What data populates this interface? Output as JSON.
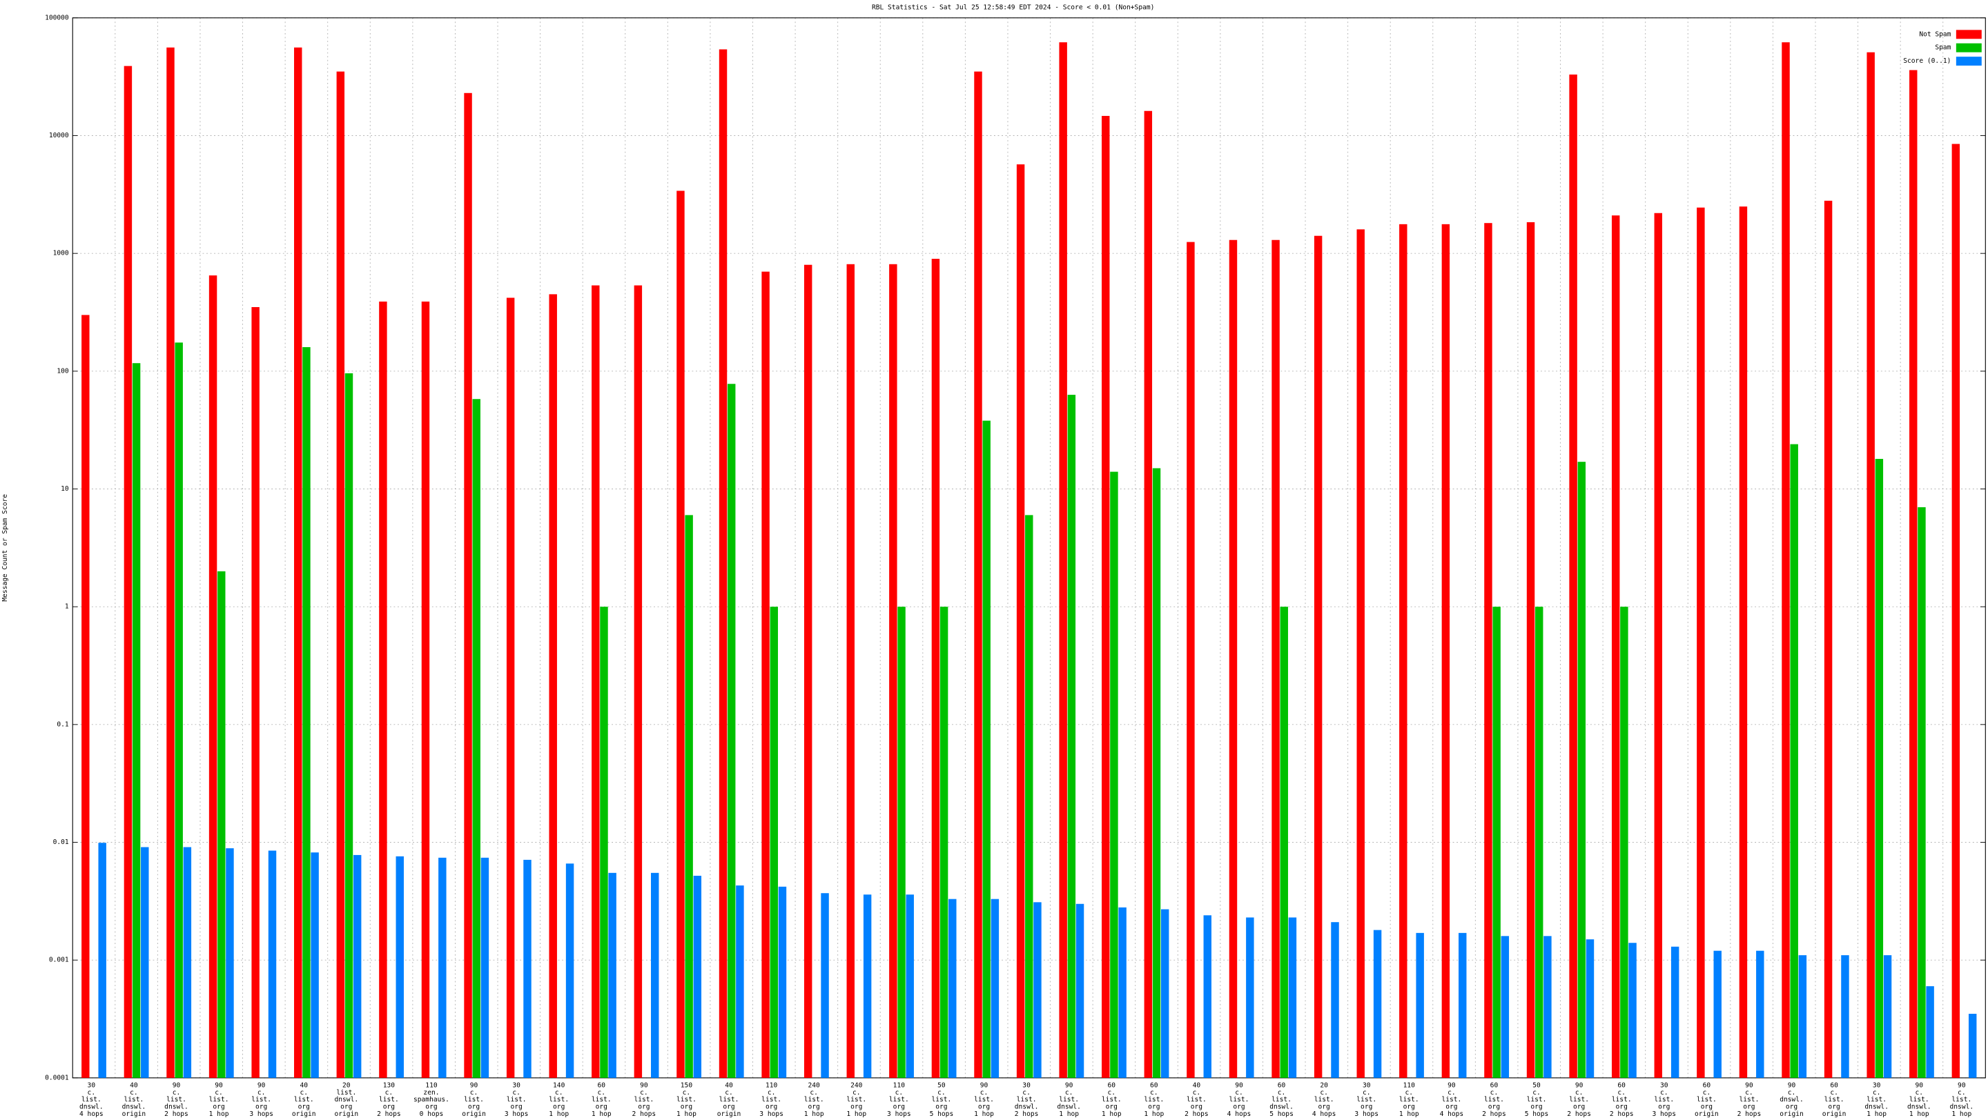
{
  "chart_data": {
    "type": "bar",
    "title": "RBL Statistics - Sat Jul 25 12:58:49 EDT 2024 - Score < 0.01 (Non+Spam)",
    "y_label": "Message Count or Spam Score",
    "log_scale": true,
    "grid": true,
    "legend_position": "upper right",
    "ylim": [
      0.0001,
      100000
    ],
    "yticks": [
      0.0001,
      0.001,
      0.01,
      0.1,
      1,
      10,
      100,
      1000,
      10000,
      100000
    ],
    "categories": [
      [
        "30",
        "c.",
        "list.",
        "dnswl.",
        "4 hops"
      ],
      [
        "40",
        "c.",
        "list.",
        "dnswl.",
        "origin"
      ],
      [
        "90",
        "c.",
        "list.",
        "dnswl.",
        "2 hops"
      ],
      [
        "90",
        "c.",
        "list.",
        "org",
        "1 hop"
      ],
      [
        "90",
        "c.",
        "list.",
        "org",
        "3 hops"
      ],
      [
        "40",
        "c.",
        "list.",
        "org",
        "origin"
      ],
      [
        "20",
        "list.",
        "dnswl.",
        "org",
        "origin"
      ],
      [
        "130",
        "c.",
        "list.",
        "org",
        "2 hops"
      ],
      [
        "110",
        "zen.",
        "spamhaus.",
        "org",
        "0 hops"
      ],
      [
        "90",
        "c.",
        "list.",
        "org",
        "origin"
      ],
      [
        "30",
        "c.",
        "list.",
        "org",
        "3 hops"
      ],
      [
        "140",
        "c.",
        "list.",
        "org",
        "1 hop"
      ],
      [
        "60",
        "c.",
        "list.",
        "org",
        "1 hop"
      ],
      [
        "90",
        "c.",
        "list.",
        "org",
        "2 hops"
      ],
      [
        "150",
        "c.",
        "list.",
        "org",
        "1 hop"
      ],
      [
        "40",
        "c.",
        "list.",
        "org",
        "origin"
      ],
      [
        "110",
        "c.",
        "list.",
        "org",
        "3 hops"
      ],
      [
        "240",
        "c.",
        "list.",
        "org",
        "1 hop"
      ],
      [
        "240",
        "c.",
        "list.",
        "org",
        "1 hop"
      ],
      [
        "110",
        "c.",
        "list.",
        "org",
        "3 hops"
      ],
      [
        "50",
        "c.",
        "list.",
        "org",
        "5 hops"
      ],
      [
        "90",
        "c.",
        "list.",
        "org",
        "1 hop"
      ],
      [
        "30",
        "c.",
        "list.",
        "dnswl.",
        "2 hops"
      ],
      [
        "90",
        "c.",
        "list.",
        "dnswl.",
        "1 hop"
      ],
      [
        "60",
        "c.",
        "list.",
        "org",
        "1 hop"
      ],
      [
        "60",
        "c.",
        "list.",
        "org",
        "1 hop"
      ],
      [
        "40",
        "c.",
        "list.",
        "org",
        "2 hops"
      ],
      [
        "90",
        "c.",
        "list.",
        "org",
        "4 hops"
      ],
      [
        "60",
        "c.",
        "list.",
        "dnswl.",
        "5 hops"
      ],
      [
        "20",
        "c.",
        "list.",
        "org",
        "4 hops"
      ],
      [
        "30",
        "c.",
        "list.",
        "org",
        "3 hops"
      ],
      [
        "110",
        "c.",
        "list.",
        "org",
        "1 hop"
      ],
      [
        "90",
        "c.",
        "list.",
        "org",
        "4 hops"
      ],
      [
        "60",
        "c.",
        "list.",
        "org",
        "2 hops"
      ],
      [
        "50",
        "c.",
        "list.",
        "org",
        "5 hops"
      ],
      [
        "90",
        "c.",
        "list.",
        "org",
        "2 hops"
      ],
      [
        "60",
        "c.",
        "list.",
        "org",
        "2 hops"
      ],
      [
        "30",
        "c.",
        "list.",
        "org",
        "3 hops"
      ],
      [
        "60",
        "c.",
        "list.",
        "org",
        "origin"
      ],
      [
        "90",
        "c.",
        "list.",
        "org",
        "2 hops"
      ],
      [
        "90",
        "c.",
        "dnswl.",
        "org",
        "origin"
      ],
      [
        "60",
        "c.",
        "list.",
        "org",
        "origin"
      ],
      [
        "30",
        "c.",
        "list.",
        "dnswl.",
        "1 hop"
      ],
      [
        "90",
        "c.",
        "list.",
        "dnswl.",
        "1 hop"
      ],
      [
        "90",
        "c.",
        "list.",
        "dnswl.",
        "1 hop"
      ]
    ],
    "series": [
      {
        "name": "Not Spam",
        "color": "#ff0000",
        "values": [
          300,
          39000,
          56000,
          650,
          350,
          56000,
          35000,
          390,
          390,
          23000,
          420,
          450,
          535,
          535,
          3400,
          54000,
          700,
          800,
          810,
          810,
          900,
          35000,
          5700,
          62000,
          14700,
          16200,
          1250,
          1300,
          1300,
          1410,
          1600,
          1770,
          1770,
          1810,
          1840,
          33000,
          2100,
          2200,
          2450,
          2500,
          62000,
          2800,
          51000,
          36000,
          8500
        ]
      },
      {
        "name": "Spam",
        "color": "#00c000",
        "values": [
          null,
          117,
          175,
          2,
          null,
          160,
          96,
          null,
          null,
          58,
          null,
          null,
          1,
          null,
          6,
          78,
          1,
          null,
          null,
          1,
          1,
          38,
          6,
          63,
          14,
          15,
          null,
          null,
          1,
          null,
          null,
          null,
          null,
          1,
          1,
          17,
          1,
          null,
          null,
          null,
          24,
          null,
          18,
          7,
          null
        ]
      },
      {
        "name": "Score (0..1)",
        "color": "#0080ff",
        "values": [
          0.0099,
          0.0091,
          0.0091,
          0.0089,
          0.0085,
          0.0082,
          0.0078,
          0.0076,
          0.0074,
          0.0074,
          0.0071,
          0.0066,
          0.0055,
          0.0055,
          0.0052,
          0.0043,
          0.0042,
          0.0037,
          0.0036,
          0.0036,
          0.0033,
          0.0033,
          0.0031,
          0.003,
          0.0028,
          0.0027,
          0.0024,
          0.0023,
          0.0023,
          0.0021,
          0.0018,
          0.0017,
          0.0017,
          0.0016,
          0.0016,
          0.0015,
          0.0014,
          0.0013,
          0.0012,
          0.0012,
          0.0011,
          0.0011,
          0.0011,
          0.0006,
          0.00035
        ]
      }
    ]
  }
}
